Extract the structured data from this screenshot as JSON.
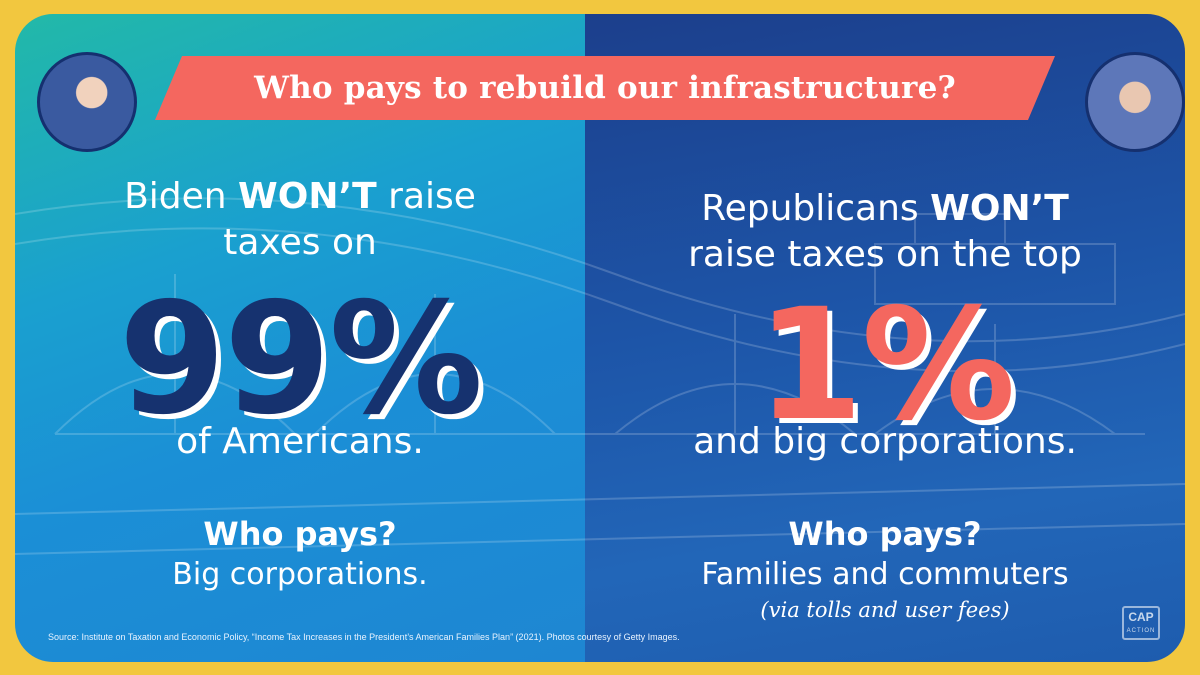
{
  "banner": {
    "title": "Who pays to rebuild our infrastructure?"
  },
  "left": {
    "headline_pre": "Biden ",
    "headline_bold": "WON’T",
    "headline_post": " raise",
    "headline_line2": "taxes on",
    "big_number": "99%",
    "subline": "of Americans.",
    "who_label": "Who pays?",
    "answer": "Big corporations."
  },
  "right": {
    "headline_pre": "Republicans ",
    "headline_bold": "WON’T",
    "headline_line2": "raise taxes on the top",
    "big_number": "1%",
    "subline": "and big corporations.",
    "who_label": "Who pays?",
    "answer": "Families and commuters",
    "note": "(via tolls and user fees)"
  },
  "footer": {
    "source": "Source: Institute on Taxation and Economic Policy, “Income Tax Increases in the President’s American Families Plan” (2021). Photos courtesy of Getty Images.",
    "logo_top": "CAP",
    "logo_bottom": "ACTION"
  },
  "colors": {
    "frame": "#f2c73f",
    "banner": "#f4675f",
    "navy": "#16326f",
    "coral": "#f4675f"
  }
}
